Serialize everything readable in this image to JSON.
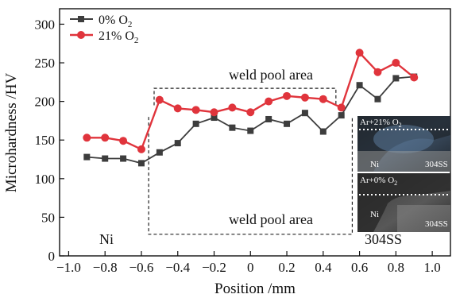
{
  "chart_data": {
    "type": "line",
    "xlabel": "Position /mm",
    "ylabel": "Microhardness /HV",
    "xlim": [
      -1.05,
      1.1
    ],
    "ylim": [
      0,
      320
    ],
    "x_ticks": [
      -1.0,
      -0.8,
      -0.6,
      -0.4,
      -0.2,
      0,
      0.2,
      0.4,
      0.6,
      0.8,
      1.0
    ],
    "x_tick_labels": [
      "−1.0",
      "−0.8",
      "−0.6",
      "−0.4",
      "−0.2",
      "0",
      "0.2",
      "0.4",
      "0.6",
      "0.8",
      "1.0"
    ],
    "y_ticks": [
      0,
      50,
      100,
      150,
      200,
      250,
      300
    ],
    "y_tick_labels": [
      "0",
      "50",
      "100",
      "150",
      "200",
      "250",
      "300"
    ],
    "grid": false,
    "legend_position": "top-left",
    "legend": [
      {
        "label": "0% O",
        "sub": "2"
      },
      {
        "label": "21% O",
        "sub": "2"
      }
    ],
    "x": [
      -0.9,
      -0.8,
      -0.7,
      -0.6,
      -0.5,
      -0.4,
      -0.3,
      -0.2,
      -0.1,
      0.0,
      0.1,
      0.2,
      0.3,
      0.4,
      0.5,
      0.6,
      0.7,
      0.8,
      0.9
    ],
    "series": [
      {
        "color": "#3d3d3d",
        "marker": "square",
        "values": [
          128,
          126,
          126,
          120,
          134,
          146,
          171,
          179,
          166,
          162,
          177,
          171,
          185,
          161,
          182,
          221,
          203,
          230,
          232
        ]
      },
      {
        "color": "#e0343c",
        "marker": "circle",
        "values": [
          153,
          153,
          149,
          138,
          202,
          191,
          189,
          186,
          192,
          186,
          200,
          207,
          205,
          203,
          192,
          263,
          238,
          250,
          231
        ]
      }
    ],
    "annotations": {
      "weld_pool_upper": "weld pool area",
      "weld_pool_lower": "weld pool area",
      "left_material": "Ni",
      "right_material": "304SS"
    },
    "regions": [
      {
        "x0": -0.53,
        "x1": 0.47,
        "y0": 217,
        "y1": 217,
        "style": "dashed"
      },
      {
        "x0": -0.56,
        "x1": 0.56,
        "y0": 28,
        "y1": 28,
        "style": "dashed"
      }
    ],
    "insets": [
      {
        "top_label": "Ar+21% O",
        "top_sub": "2",
        "left_label": "Ni",
        "right_label": "304SS"
      },
      {
        "top_label": "Ar+0% O",
        "top_sub": "2",
        "left_label": "Ni",
        "right_label": "304SS"
      }
    ]
  }
}
